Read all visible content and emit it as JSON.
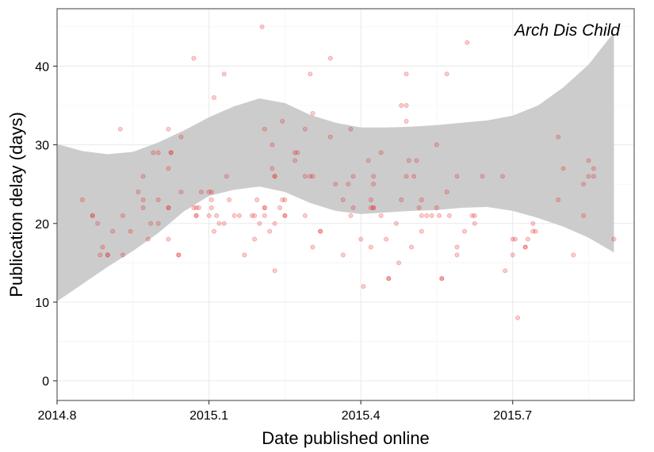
{
  "chart_data": {
    "type": "scatter",
    "xlabel": "Date published online",
    "ylabel": "Publication delay (days)",
    "annotation": "Arch Dis Child",
    "xlim": [
      2014.8,
      2015.94
    ],
    "ylim": [
      -2.5,
      47.3
    ],
    "x_ticks": [
      {
        "value": 2014.8,
        "label": "2014.8"
      },
      {
        "value": 2015.1,
        "label": "2015.1"
      },
      {
        "value": 2015.4,
        "label": "2015.4"
      },
      {
        "value": 2015.7,
        "label": "2015.7"
      }
    ],
    "y_ticks": [
      {
        "value": 0,
        "label": "0"
      },
      {
        "value": 10,
        "label": "10"
      },
      {
        "value": 20,
        "label": "20"
      },
      {
        "value": 30,
        "label": "30"
      },
      {
        "value": 40,
        "label": "40"
      }
    ],
    "grid": true,
    "point_color": "#e41a1c",
    "band_color": "#cccccc",
    "confidence_band": {
      "x": [
        2014.8,
        2014.85,
        2014.9,
        2014.95,
        2015.0,
        2015.05,
        2015.1,
        2015.15,
        2015.2,
        2015.25,
        2015.3,
        2015.35,
        2015.4,
        2015.45,
        2015.5,
        2015.55,
        2015.6,
        2015.65,
        2015.7,
        2015.75,
        2015.8,
        2015.85,
        2015.9
      ],
      "upper": [
        30.1,
        29.2,
        28.8,
        29.1,
        30.3,
        31.8,
        33.5,
        34.9,
        35.9,
        35.3,
        33.8,
        32.8,
        32.2,
        32.2,
        32.3,
        32.5,
        32.8,
        33.1,
        33.7,
        35.0,
        37.3,
        40.2,
        44.3
      ],
      "lower": [
        10.1,
        12.3,
        14.5,
        16.5,
        18.8,
        21.5,
        23.5,
        24.3,
        24.7,
        24.0,
        22.6,
        21.6,
        21.2,
        21.4,
        21.6,
        21.7,
        22.0,
        22.1,
        21.6,
        20.7,
        19.6,
        18.2,
        16.3
      ]
    },
    "points": [
      [
        2014.85,
        23
      ],
      [
        2014.87,
        21
      ],
      [
        2014.87,
        21
      ],
      [
        2014.88,
        20
      ],
      [
        2014.885,
        16
      ],
      [
        2014.89,
        17
      ],
      [
        2014.9,
        16
      ],
      [
        2014.9,
        16
      ],
      [
        2014.91,
        19
      ],
      [
        2014.925,
        32
      ],
      [
        2014.93,
        21
      ],
      [
        2014.93,
        16
      ],
      [
        2014.945,
        19
      ],
      [
        2014.96,
        24
      ],
      [
        2014.97,
        26
      ],
      [
        2014.97,
        23
      ],
      [
        2014.97,
        22
      ],
      [
        2014.98,
        18
      ],
      [
        2014.985,
        20
      ],
      [
        2014.99,
        29
      ],
      [
        2015.0,
        20
      ],
      [
        2015.0,
        23
      ],
      [
        2015.0,
        29
      ],
      [
        2015.02,
        32
      ],
      [
        2015.02,
        27
      ],
      [
        2015.02,
        22
      ],
      [
        2015.02,
        22
      ],
      [
        2015.02,
        18
      ],
      [
        2015.025,
        29
      ],
      [
        2015.025,
        29
      ],
      [
        2015.04,
        16
      ],
      [
        2015.04,
        16
      ],
      [
        2015.045,
        31
      ],
      [
        2015.045,
        24
      ],
      [
        2015.07,
        41
      ],
      [
        2015.07,
        22
      ],
      [
        2015.075,
        21
      ],
      [
        2015.075,
        22
      ],
      [
        2015.075,
        21
      ],
      [
        2015.08,
        22
      ],
      [
        2015.085,
        24
      ],
      [
        2015.1,
        24
      ],
      [
        2015.1,
        21
      ],
      [
        2015.105,
        24
      ],
      [
        2015.105,
        23
      ],
      [
        2015.105,
        22
      ],
      [
        2015.11,
        36
      ],
      [
        2015.11,
        19
      ],
      [
        2015.115,
        21
      ],
      [
        2015.12,
        20
      ],
      [
        2015.13,
        39
      ],
      [
        2015.13,
        20
      ],
      [
        2015.135,
        26
      ],
      [
        2015.14,
        23
      ],
      [
        2015.15,
        21
      ],
      [
        2015.16,
        21
      ],
      [
        2015.17,
        16
      ],
      [
        2015.185,
        21
      ],
      [
        2015.19,
        21
      ],
      [
        2015.19,
        18
      ],
      [
        2015.195,
        23
      ],
      [
        2015.2,
        20
      ],
      [
        2015.205,
        45
      ],
      [
        2015.21,
        22
      ],
      [
        2015.21,
        22
      ],
      [
        2015.21,
        21
      ],
      [
        2015.21,
        32
      ],
      [
        2015.22,
        19
      ],
      [
        2015.225,
        30
      ],
      [
        2015.225,
        27
      ],
      [
        2015.23,
        26
      ],
      [
        2015.23,
        26
      ],
      [
        2015.23,
        20
      ],
      [
        2015.23,
        14
      ],
      [
        2015.24,
        22
      ],
      [
        2015.245,
        33
      ],
      [
        2015.245,
        23
      ],
      [
        2015.25,
        23
      ],
      [
        2015.25,
        21
      ],
      [
        2015.25,
        21
      ],
      [
        2015.27,
        29
      ],
      [
        2015.27,
        28
      ],
      [
        2015.275,
        29
      ],
      [
        2015.29,
        26
      ],
      [
        2015.29,
        32
      ],
      [
        2015.29,
        21
      ],
      [
        2015.3,
        26
      ],
      [
        2015.3,
        39
      ],
      [
        2015.305,
        34
      ],
      [
        2015.305,
        26
      ],
      [
        2015.305,
        17
      ],
      [
        2015.32,
        19
      ],
      [
        2015.32,
        19
      ],
      [
        2015.34,
        41
      ],
      [
        2015.34,
        31
      ],
      [
        2015.35,
        25
      ],
      [
        2015.365,
        23
      ],
      [
        2015.365,
        16
      ],
      [
        2015.375,
        25
      ],
      [
        2015.38,
        32
      ],
      [
        2015.38,
        21
      ],
      [
        2015.385,
        26
      ],
      [
        2015.385,
        22
      ],
      [
        2015.4,
        18
      ],
      [
        2015.405,
        12
      ],
      [
        2015.415,
        28
      ],
      [
        2015.42,
        23
      ],
      [
        2015.42,
        22
      ],
      [
        2015.42,
        17
      ],
      [
        2015.425,
        25
      ],
      [
        2015.425,
        26
      ],
      [
        2015.425,
        22
      ],
      [
        2015.425,
        22
      ],
      [
        2015.44,
        29
      ],
      [
        2015.44,
        21
      ],
      [
        2015.45,
        18
      ],
      [
        2015.455,
        13
      ],
      [
        2015.455,
        13
      ],
      [
        2015.47,
        20
      ],
      [
        2015.475,
        15
      ],
      [
        2015.48,
        35
      ],
      [
        2015.48,
        23
      ],
      [
        2015.49,
        26
      ],
      [
        2015.49,
        39
      ],
      [
        2015.49,
        35
      ],
      [
        2015.49,
        33
      ],
      [
        2015.495,
        28
      ],
      [
        2015.5,
        17
      ],
      [
        2015.505,
        26
      ],
      [
        2015.51,
        28
      ],
      [
        2015.515,
        22
      ],
      [
        2015.52,
        21
      ],
      [
        2015.52,
        19
      ],
      [
        2015.52,
        23
      ],
      [
        2015.53,
        21
      ],
      [
        2015.54,
        21
      ],
      [
        2015.55,
        30
      ],
      [
        2015.55,
        22
      ],
      [
        2015.555,
        21
      ],
      [
        2015.56,
        13
      ],
      [
        2015.56,
        13
      ],
      [
        2015.57,
        39
      ],
      [
        2015.57,
        24
      ],
      [
        2015.575,
        21
      ],
      [
        2015.59,
        16
      ],
      [
        2015.59,
        17
      ],
      [
        2015.59,
        26
      ],
      [
        2015.605,
        19
      ],
      [
        2015.61,
        43
      ],
      [
        2015.62,
        21
      ],
      [
        2015.625,
        21
      ],
      [
        2015.625,
        20
      ],
      [
        2015.64,
        26
      ],
      [
        2015.68,
        26
      ],
      [
        2015.685,
        14
      ],
      [
        2015.7,
        18
      ],
      [
        2015.7,
        16
      ],
      [
        2015.705,
        18
      ],
      [
        2015.71,
        8
      ],
      [
        2015.725,
        17
      ],
      [
        2015.725,
        17
      ],
      [
        2015.73,
        18
      ],
      [
        2015.74,
        20
      ],
      [
        2015.74,
        19
      ],
      [
        2015.745,
        19
      ],
      [
        2015.79,
        31
      ],
      [
        2015.79,
        23
      ],
      [
        2015.8,
        27
      ],
      [
        2015.82,
        16
      ],
      [
        2015.84,
        25
      ],
      [
        2015.84,
        21
      ],
      [
        2015.85,
        28
      ],
      [
        2015.85,
        26
      ],
      [
        2015.86,
        26
      ],
      [
        2015.86,
        27
      ],
      [
        2015.9,
        18
      ]
    ]
  }
}
